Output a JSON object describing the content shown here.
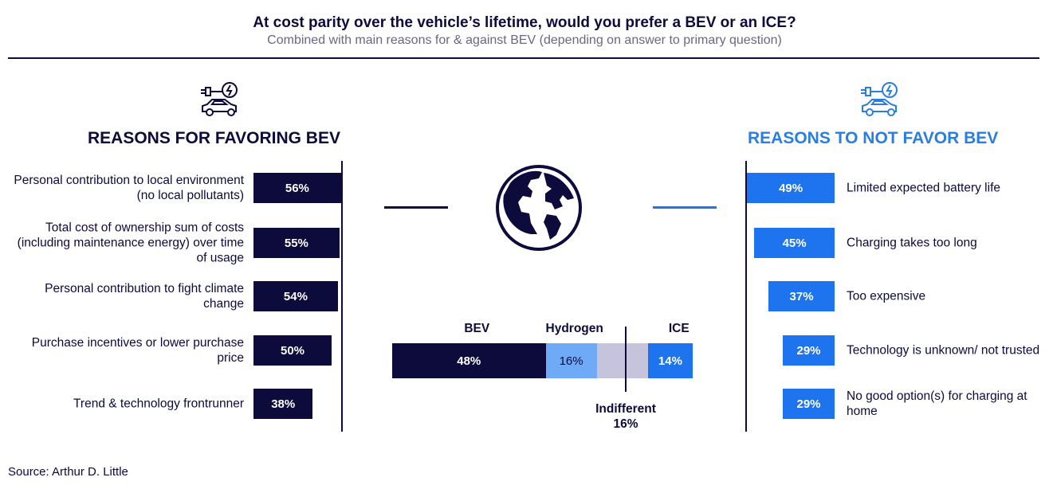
{
  "title": "At cost parity over the vehicle’s lifetime, would you prefer a BEV or an ICE?",
  "subtitle": "Combined with main reasons for & against BEV (depending on answer to primary question)",
  "source": "Source: Arthur D. Little",
  "colors": {
    "navy": "#0d0a3c",
    "blue": "#1e74ee",
    "light_blue": "#6eaaf5",
    "gray": "#c6c4dc",
    "right_title": "#2a7de1"
  },
  "icons": [
    "ev-charging-car-icon",
    "globe-icon"
  ],
  "chart_data": [
    {
      "type": "bar",
      "orientation": "horizontal",
      "title": "REASONS FOR FAVORING BEV",
      "categories": [
        "Personal contribution to local environment (no local pollutants)",
        "Total cost of ownership sum of costs (including maintenance energy) over time of usage",
        "Personal contribution to fight climate change",
        "Purchase incentives or lower purchase price",
        "Trend & technology frontrunner"
      ],
      "values": [
        56,
        55,
        54,
        50,
        38
      ],
      "labels": [
        "56%",
        "55%",
        "54%",
        "50%",
        "38%"
      ],
      "color": "#0d0a3c"
    },
    {
      "type": "bar",
      "orientation": "horizontal",
      "title": "REASONS TO NOT FAVOR BEV",
      "categories": [
        "Limited expected battery life",
        "Charging takes too long",
        "Too expensive",
        "Technology is unknown/ not trusted",
        "No good option(s) for charging at home"
      ],
      "values": [
        49,
        45,
        37,
        29,
        29
      ],
      "labels": [
        "49%",
        "45%",
        "37%",
        "29%",
        "29%"
      ],
      "color": "#1e74ee"
    },
    {
      "type": "bar",
      "stacked": true,
      "orientation": "horizontal",
      "series": [
        {
          "name": "BEV",
          "values": [
            48
          ],
          "label": "48%",
          "color": "#0d0a3c"
        },
        {
          "name": "Hydrogen",
          "values": [
            16
          ],
          "label": "16%",
          "color": "#6eaaf5"
        },
        {
          "name": "Indifferent",
          "values": [
            16
          ],
          "label": "16%",
          "color": "#c6c4dc"
        },
        {
          "name": "ICE",
          "values": [
            14
          ],
          "label": "14%",
          "color": "#1e74ee"
        }
      ]
    }
  ]
}
